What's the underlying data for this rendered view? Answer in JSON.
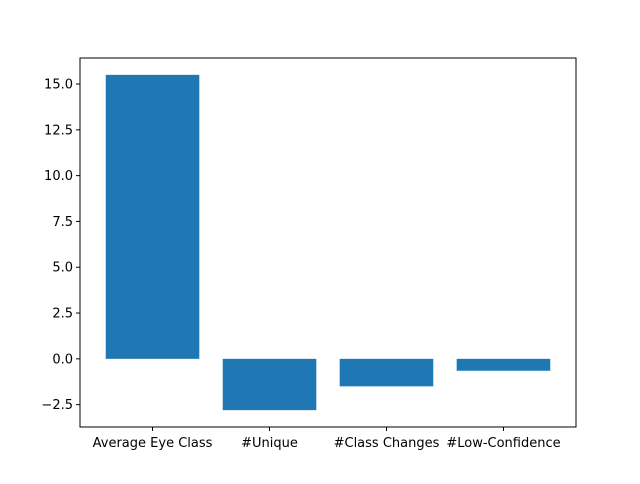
{
  "chart_data": {
    "type": "bar",
    "title": "",
    "xlabel": "",
    "ylabel": "",
    "categories": [
      "Average Eye Class",
      "#Unique",
      "#Class Changes",
      "#Low-Confidence"
    ],
    "values": [
      15.5,
      -2.8,
      -1.5,
      -0.65
    ],
    "ylim": [
      -3.72,
      16.42
    ],
    "yticks": [
      -2.5,
      0.0,
      2.5,
      5.0,
      7.5,
      10.0,
      12.5,
      15.0
    ],
    "ytick_labels": [
      "−2.5",
      "0.0",
      "2.5",
      "5.0",
      "7.5",
      "10.0",
      "12.5",
      "15.0"
    ],
    "grid": false,
    "colors": {
      "bar": "#1f77b4",
      "axis": "#000000",
      "background": "#ffffff"
    }
  }
}
